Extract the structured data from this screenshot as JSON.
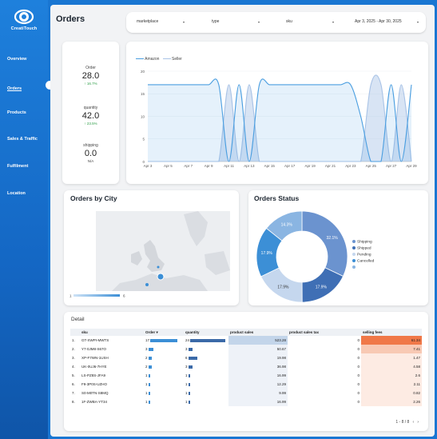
{
  "brand": {
    "logo_text": "CreatiTouch"
  },
  "nav": [
    {
      "label": "Overview",
      "active": false
    },
    {
      "label": "Orders",
      "active": true
    },
    {
      "label": "Products",
      "active": false
    },
    {
      "label": "Sales & Traffic",
      "active": false
    },
    {
      "label": "Fulfilment",
      "active": false
    },
    {
      "label": "Location",
      "active": false
    }
  ],
  "page": {
    "title": "Orders"
  },
  "filters": {
    "marketplace": "marketplace",
    "type": "type",
    "sku": "sku",
    "date_range": "Apr 3, 2025 - Apr 30, 2025"
  },
  "kpis": [
    {
      "label": "Order",
      "value": "28.0",
      "delta": "↑ 16.7%"
    },
    {
      "label": "quantity",
      "value": "42.0",
      "delta": "↑ 23.5%"
    },
    {
      "label": "shipping",
      "value": "0.0",
      "delta": "N/A"
    }
  ],
  "colors": {
    "amazon": "#4a9ee0",
    "seller": "#a9c3e6",
    "accent": "#1976d2"
  },
  "chart_data": [
    {
      "type": "line",
      "x": [
        "Apr 3",
        "Apr 4",
        "Apr 5",
        "Apr 6",
        "Apr 7",
        "Apr 8",
        "Apr 9",
        "Apr 10",
        "Apr 11",
        "Apr 12",
        "Apr 13",
        "Apr 14",
        "Apr 15",
        "Apr 16",
        "Apr 17",
        "Apr 18",
        "Apr 19",
        "Apr 20",
        "Apr 21",
        "Apr 22",
        "Apr 23",
        "Apr 24",
        "Apr 25",
        "Apr 26",
        "Apr 27",
        "Apr 28",
        "Apr 29"
      ],
      "x_tick_labels": [
        "Apr 3",
        "Apr 5",
        "Apr 7",
        "Apr 9",
        "Apr 11",
        "Apr 13",
        "Apr 15",
        "Apr 17",
        "Apr 19",
        "Apr 21",
        "Apr 23",
        "Apr 25",
        "Apr 27",
        "Apr 29"
      ],
      "y_ticks": [
        0,
        5,
        10,
        15,
        20
      ],
      "ylim": [
        0,
        20
      ],
      "legend_position": "top-left",
      "series": [
        {
          "name": "Amazon",
          "values": [
            17,
            17,
            17,
            17,
            17,
            17,
            17,
            17,
            0,
            17,
            0,
            17,
            17,
            17,
            17,
            17,
            17,
            17,
            17,
            17,
            17,
            10,
            0,
            0,
            17,
            0,
            17
          ]
        },
        {
          "name": "Seller",
          "values": [
            0,
            0,
            0,
            0,
            0,
            0,
            0,
            0,
            17,
            0,
            17,
            0,
            0,
            0,
            0,
            0,
            0,
            0,
            0,
            0,
            0,
            0,
            17,
            17,
            0,
            17,
            0
          ]
        }
      ]
    },
    {
      "type": "map",
      "title": "Orders by City",
      "scale_min": "1",
      "scale_max": "6"
    },
    {
      "type": "pie",
      "title": "Orders Status",
      "slices": [
        {
          "label": "Shipping",
          "value": 32.1,
          "label_text": "32.1%",
          "color": "#6b93cf"
        },
        {
          "label": "Shipped",
          "value": 17.9,
          "label_text": "17.9%",
          "color": "#3f6fb5"
        },
        {
          "label": "Pending",
          "value": 17.9,
          "label_text": "17.9%",
          "color": "#c5d7ee"
        },
        {
          "label": "Cancelled",
          "value": 17.9,
          "label_text": "17.9%",
          "color": "#3c8fd6"
        },
        {
          "label": "",
          "value": 14.3,
          "label_text": "14.3%",
          "color": "#8ab5e2"
        }
      ]
    }
  ],
  "detail": {
    "title": "Detail",
    "columns": [
      "sku",
      "Order ▾",
      "quantity",
      "product sales",
      "product sales tax",
      "selling fees"
    ],
    "max_order": 17,
    "max_quantity": 24,
    "rows": [
      {
        "idx": "1.",
        "sku": "GT-XWPI-MWTS",
        "order": 17,
        "quantity": 24,
        "sales": "523.28",
        "tax": "0",
        "fees": "61.34"
      },
      {
        "idx": "2.",
        "sku": "Y7-0JM8-S67O",
        "order": 3,
        "quantity": 3,
        "sales": "50.67",
        "tax": "0",
        "fees": "7.41"
      },
      {
        "idx": "3.",
        "sku": "XP-F7WN-1USH",
        "order": 2,
        "quantity": 6,
        "sales": "19.98",
        "tax": "0",
        "fees": "1.47"
      },
      {
        "idx": "4.",
        "sku": "UK-0UJ6-7HYE",
        "order": 2,
        "quantity": 3,
        "sales": "36.98",
        "tax": "0",
        "fees": "4.58"
      },
      {
        "idx": "5.",
        "sku": "LS-PZ8S-JFA9",
        "order": 1,
        "quantity": 1,
        "sales": "16.99",
        "tax": "0",
        "fees": "2.6"
      },
      {
        "idx": "6.",
        "sku": "F9-3P0S-UZHO",
        "order": 1,
        "quantity": 1,
        "sales": "12.29",
        "tax": "0",
        "fees": "2.11"
      },
      {
        "idx": "7.",
        "sku": "S0-M0TN-S8MQ",
        "order": 1,
        "quantity": 1,
        "sales": "9.99",
        "tax": "0",
        "fees": "0.82"
      },
      {
        "idx": "8.",
        "sku": "1F-ZWBA-YT34",
        "order": 1,
        "quantity": 1,
        "sales": "16.99",
        "tax": "0",
        "fees": "2.26"
      }
    ],
    "pager": "1 - 8 / 8"
  }
}
